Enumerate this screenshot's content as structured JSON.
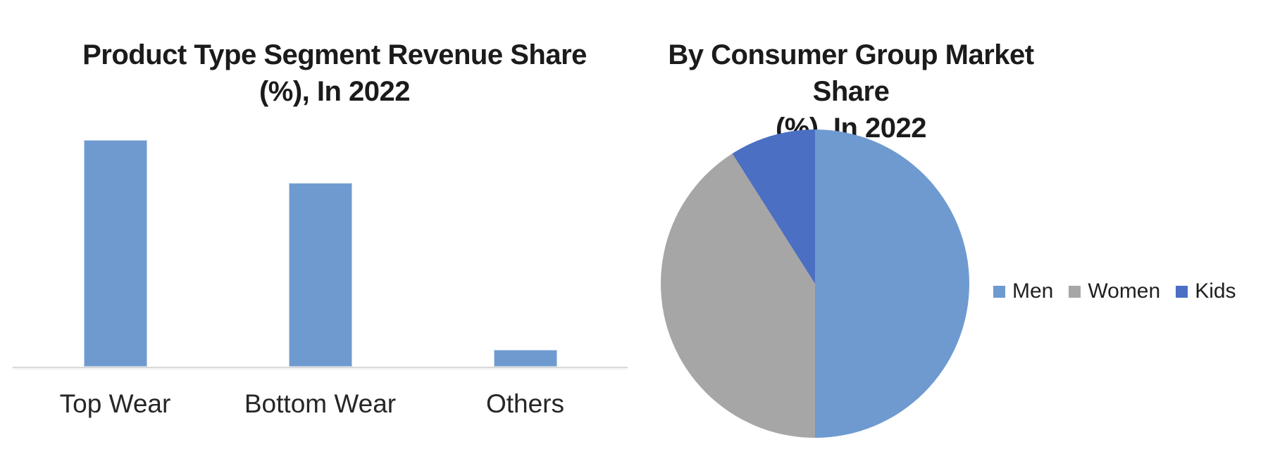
{
  "page": {
    "background_color": "#FFFFFF"
  },
  "left_chart": {
    "title_lines": [
      "Product Type Segment Revenue Share",
      "(%), In 2022"
    ],
    "chart_data": {
      "type": "bar",
      "title": "Product Type Segment Revenue Share (%), In 2022",
      "categories": [
        "Top Wear",
        "Bottom Wear",
        "Others"
      ],
      "values": [
        53,
        43,
        4
      ],
      "xlabel": "",
      "ylabel": "",
      "ylim": [
        0,
        61
      ],
      "grid": false,
      "axis_labels_visible": false,
      "bar_color": "#6E9AD0",
      "axis_line_color": "#D9D9D9"
    }
  },
  "right_chart": {
    "title_lines": [
      "By Consumer Group Market Share",
      "(%), In 2022"
    ],
    "chart_data": {
      "type": "pie",
      "title": "By Consumer Group Market Share (%), In 2022",
      "labels": [
        "Men",
        "Women",
        "Kids"
      ],
      "values": [
        50,
        41,
        9
      ],
      "colors": [
        "#6E9AD0",
        "#A6A6A6",
        "#4A6FC3"
      ],
      "start_angle_deg": 0,
      "direction": "clockwise",
      "legend_position": "right"
    }
  }
}
